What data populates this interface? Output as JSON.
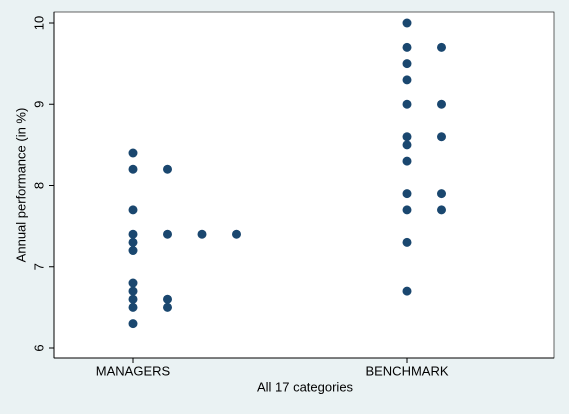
{
  "chart_data": {
    "type": "dot",
    "categories": [
      "MANAGERS",
      "BENCHMARK"
    ],
    "values": [
      [
        8.4,
        8.2,
        8.2,
        7.7,
        7.4,
        7.4,
        7.4,
        7.4,
        7.3,
        7.2,
        6.8,
        6.7,
        6.6,
        6.6,
        6.5,
        6.5,
        6.3
      ],
      [
        10,
        9.7,
        9.7,
        9.5,
        9.3,
        9.0,
        9.0,
        8.6,
        8.6,
        8.5,
        8.3,
        7.9,
        7.9,
        7.7,
        7.7,
        7.3,
        6.7
      ]
    ],
    "color": "#1a476f",
    "ylabel": "Annual performance (in %)",
    "xlabel": "All 17 categories",
    "ylim": [
      6,
      10
    ],
    "yticks": [
      6,
      7,
      8,
      9,
      10
    ]
  }
}
